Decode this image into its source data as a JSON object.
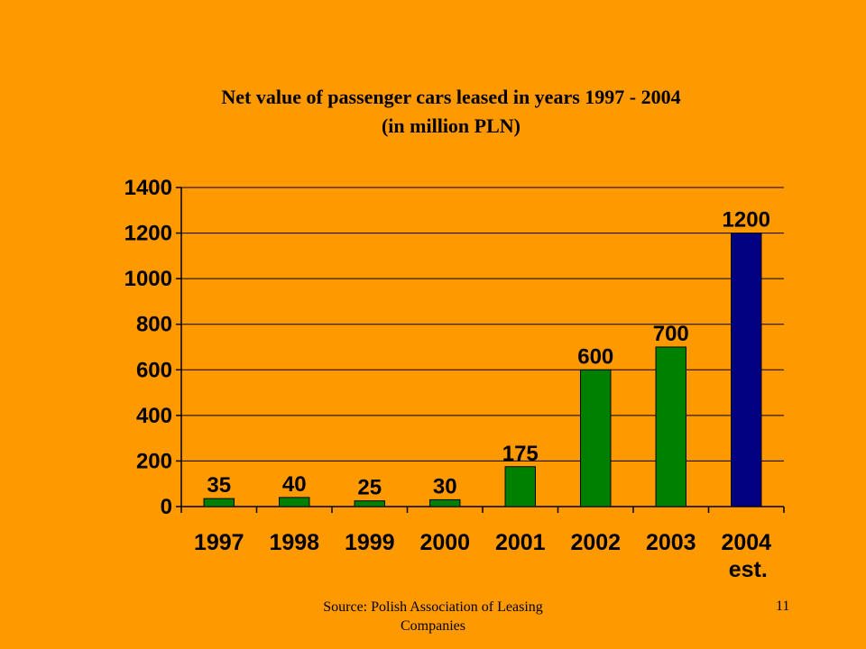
{
  "slide": {
    "title_line1": "Net value of passenger cars leased in years 1997 - 2004",
    "title_line2": "(in million PLN)",
    "source": "Source: Polish Association of Leasing Companies",
    "page_number": "11"
  },
  "colors": {
    "background": "#FF9900",
    "bar_actual": "#008000",
    "bar_estimate": "#000080"
  },
  "chart_data": {
    "type": "bar",
    "title": "Net value of passenger cars leased in years 1997 - 2004 (in million PLN)",
    "categories": [
      "1997",
      "1998",
      "1999",
      "2000",
      "2001",
      "2002",
      "2003",
      "2004"
    ],
    "category_sublabels": [
      "",
      "",
      "",
      "",
      "",
      "",
      "",
      "est."
    ],
    "values": [
      35,
      40,
      25,
      30,
      175,
      600,
      700,
      1200
    ],
    "data_labels": [
      "35",
      "40",
      "25",
      "30",
      "175",
      "600",
      "700",
      "1200"
    ],
    "estimate_flags": [
      false,
      false,
      false,
      false,
      false,
      false,
      false,
      true
    ],
    "ylim": [
      0,
      1400
    ],
    "yticks": [
      0,
      200,
      400,
      600,
      800,
      1000,
      1200,
      1400
    ],
    "grid": true,
    "legend": "none"
  }
}
